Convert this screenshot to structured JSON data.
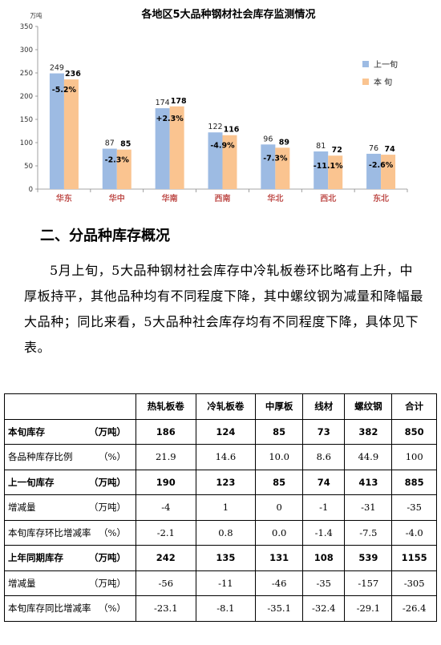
{
  "chart_data": {
    "type": "bar",
    "title": "各地区5大品种钢材社会库存监测情况",
    "yunit": "万吨",
    "ylim": [
      0,
      350
    ],
    "yticks": [
      0,
      50,
      100,
      150,
      200,
      250,
      300,
      350
    ],
    "categories": [
      "华东",
      "华中",
      "华南",
      "西南",
      "华北",
      "西北",
      "东北"
    ],
    "series": [
      {
        "name": "上一旬",
        "color": "#9dbbe3",
        "values": [
          249,
          87,
          174,
          122,
          96,
          81,
          76
        ]
      },
      {
        "name": "本 旬",
        "color": "#fac490",
        "values": [
          236,
          85,
          178,
          116,
          89,
          72,
          74
        ]
      }
    ],
    "changes": [
      "-5.2%",
      "-2.3%",
      "+2.3%",
      "-4.9%",
      "-7.3%",
      "-11.1%",
      "-2.6%"
    ],
    "legend": "right"
  },
  "section": {
    "heading": "二、分品种库存概况",
    "paragraph": "5月上旬，5大品种钢材社会库存中冷轧板卷环比略有上升，中厚板持平，其他品种均有不同程度下降，其中螺纹钢为减量和降幅最大品种；同比来看，5大品种社会库存均有不同程度下降，具体见下表。"
  },
  "table": {
    "headers": [
      "",
      "热轧板卷",
      "冷轧板卷",
      "中厚板",
      "线材",
      "螺纹钢",
      "合计"
    ],
    "rows": [
      {
        "label": "本旬库存",
        "unit": "（万吨）",
        "bold": true,
        "cells": [
          "186",
          "124",
          "85",
          "73",
          "382",
          "850"
        ]
      },
      {
        "label": "各品种库存比例",
        "unit": "（%）",
        "bold": false,
        "cells": [
          "21.9",
          "14.6",
          "10.0",
          "8.6",
          "44.9",
          "100"
        ]
      },
      {
        "label": "上一旬库存",
        "unit": "（万吨）",
        "bold": true,
        "cells": [
          "190",
          "123",
          "85",
          "74",
          "413",
          "885"
        ]
      },
      {
        "label": "增减量",
        "unit": "（万吨）",
        "bold": false,
        "cells": [
          "-4",
          "1",
          "0",
          "-1",
          "-31",
          "-35"
        ]
      },
      {
        "label": "本旬库存环比增减率",
        "unit": "（%）",
        "bold": false,
        "cells": [
          "-2.1",
          "0.8",
          "0.0",
          "-1.4",
          "-7.5",
          "-4.0"
        ]
      },
      {
        "label": "上年同期库存",
        "unit": "（万吨）",
        "bold": true,
        "cells": [
          "242",
          "135",
          "131",
          "108",
          "539",
          "1155"
        ]
      },
      {
        "label": "增减量",
        "unit": "（万吨）",
        "bold": false,
        "cells": [
          "-56",
          "-11",
          "-46",
          "-35",
          "-157",
          "-305"
        ]
      },
      {
        "label": "本旬库存同比增减率",
        "unit": "（%）",
        "bold": false,
        "cells": [
          "-23.1",
          "-8.1",
          "-35.1",
          "-32.4",
          "-29.1",
          "-26.4"
        ]
      }
    ]
  }
}
